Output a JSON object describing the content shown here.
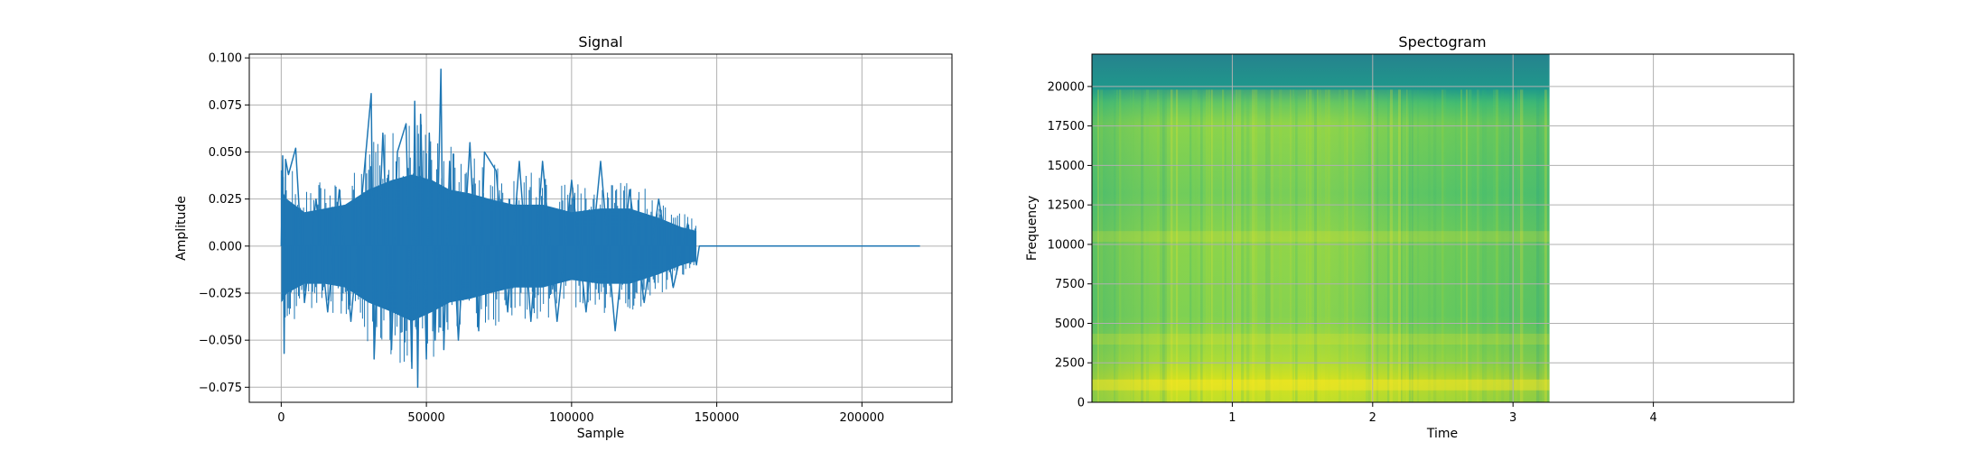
{
  "chart_data": [
    {
      "type": "line",
      "title": "Signal",
      "xlabel": "Sample",
      "ylabel": "Amplitude",
      "xlim": [
        -11000,
        231000
      ],
      "ylim": [
        -0.083,
        0.102
      ],
      "xticks": [
        0,
        50000,
        100000,
        150000,
        200000
      ],
      "xtick_labels": [
        "0",
        "50000",
        "100000",
        "150000",
        "200000"
      ],
      "yticks": [
        -0.075,
        -0.05,
        -0.025,
        0.0,
        0.025,
        0.05,
        0.075,
        0.1
      ],
      "ytick_labels": [
        "−0.075",
        "−0.050",
        "−0.025",
        "0.000",
        "0.025",
        "0.050",
        "0.075",
        "0.100"
      ],
      "grid": true,
      "series": [
        {
          "color": "#1f77b4",
          "x": [
            0,
            500,
            1000,
            1500,
            2500,
            5000,
            8000,
            12000,
            16000,
            20000,
            24000,
            28000,
            31000,
            32000,
            35000,
            38000,
            40000,
            43000,
            45000,
            46000,
            47000,
            48000,
            50000,
            51000,
            53000,
            55000,
            56000,
            58000,
            61000,
            65000,
            68000,
            70000,
            74000,
            78000,
            82000,
            86000,
            90000,
            95000,
            100000,
            105000,
            110000,
            115000,
            120000,
            125000,
            130000,
            135000,
            140000,
            143000,
            144000,
            220000
          ],
          "y": [
            0.0,
            0.048,
            -0.057,
            0.046,
            0.038,
            0.052,
            -0.03,
            0.025,
            -0.035,
            0.03,
            -0.04,
            0.03,
            0.081,
            -0.06,
            0.06,
            -0.055,
            0.05,
            0.065,
            -0.065,
            0.077,
            -0.075,
            0.07,
            -0.06,
            0.06,
            -0.05,
            0.094,
            -0.055,
            0.045,
            -0.05,
            0.055,
            -0.045,
            0.05,
            0.04,
            -0.035,
            0.045,
            -0.04,
            0.045,
            -0.04,
            0.035,
            -0.035,
            0.045,
            -0.045,
            0.03,
            -0.03,
            0.025,
            -0.022,
            0.012,
            -0.01,
            0.0,
            0.0
          ],
          "envelope": {
            "x": [
              0,
              2000,
              8000,
              15000,
              22000,
              30000,
              38000,
              45000,
              52000,
              58000,
              65000,
              72000,
              80000,
              90000,
              100000,
              110000,
              120000,
              130000,
              138000,
              143000
            ],
            "upper": [
              0.03,
              0.025,
              0.018,
              0.02,
              0.022,
              0.03,
              0.035,
              0.038,
              0.035,
              0.03,
              0.028,
              0.025,
              0.022,
              0.022,
              0.018,
              0.02,
              0.02,
              0.015,
              0.01,
              0.008
            ],
            "lower": [
              -0.03,
              -0.025,
              -0.02,
              -0.02,
              -0.022,
              -0.03,
              -0.035,
              -0.04,
              -0.035,
              -0.03,
              -0.028,
              -0.025,
              -0.022,
              -0.022,
              -0.018,
              -0.02,
              -0.02,
              -0.015,
              -0.01,
              -0.008
            ]
          }
        }
      ]
    },
    {
      "type": "heatmap",
      "title": "Spectogram",
      "xlabel": "Time",
      "ylabel": "Frequency",
      "xlim": [
        0.0,
        5.0
      ],
      "ylim": [
        0,
        22050
      ],
      "xticks": [
        1,
        2,
        3,
        4
      ],
      "xtick_labels": [
        "1",
        "2",
        "3",
        "4"
      ],
      "yticks": [
        0,
        2500,
        5000,
        7500,
        10000,
        12500,
        15000,
        17500,
        20000
      ],
      "ytick_labels": [
        "0",
        "2500",
        "5000",
        "7500",
        "10000",
        "12500",
        "15000",
        "17500",
        "20000"
      ],
      "grid": true,
      "colormap": "viridis",
      "data_extent_time": [
        0.0,
        3.26
      ],
      "cutoff_frequency": 19800,
      "bright_band_frequencies": [
        1100,
        4000,
        10500
      ]
    }
  ]
}
